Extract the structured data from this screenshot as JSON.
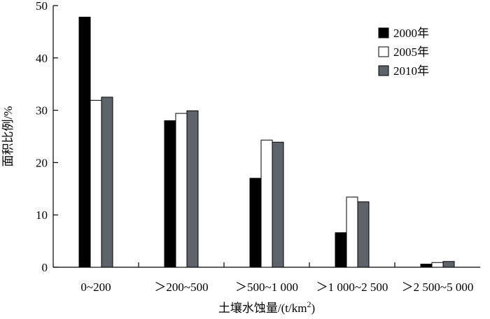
{
  "chart_data": {
    "type": "bar",
    "categories": [
      "0~200",
      "＞200~500",
      "＞500~1 000",
      "＞1 000~2 500",
      "＞2 500~5 000"
    ],
    "series": [
      {
        "name": "2000年",
        "color": "#000000",
        "values": [
          47.8,
          28.0,
          17.0,
          6.6,
          0.6
        ]
      },
      {
        "name": "2005年",
        "color": "#ffffff",
        "values": [
          31.9,
          29.4,
          24.3,
          13.4,
          0.9
        ]
      },
      {
        "name": "2010年",
        "color": "#5e6469",
        "values": [
          32.5,
          29.9,
          23.9,
          12.5,
          1.1
        ]
      }
    ],
    "xlabel": "土壤水蚀量/(t/km",
    "xlabel_sup": "2",
    "xlabel_tail": ")",
    "ylabel": "面积比例/%",
    "ylim": [
      0,
      50
    ],
    "yticks": [
      0,
      10,
      20,
      30,
      40,
      50
    ],
    "grid": false,
    "legend_position": "top-right"
  }
}
